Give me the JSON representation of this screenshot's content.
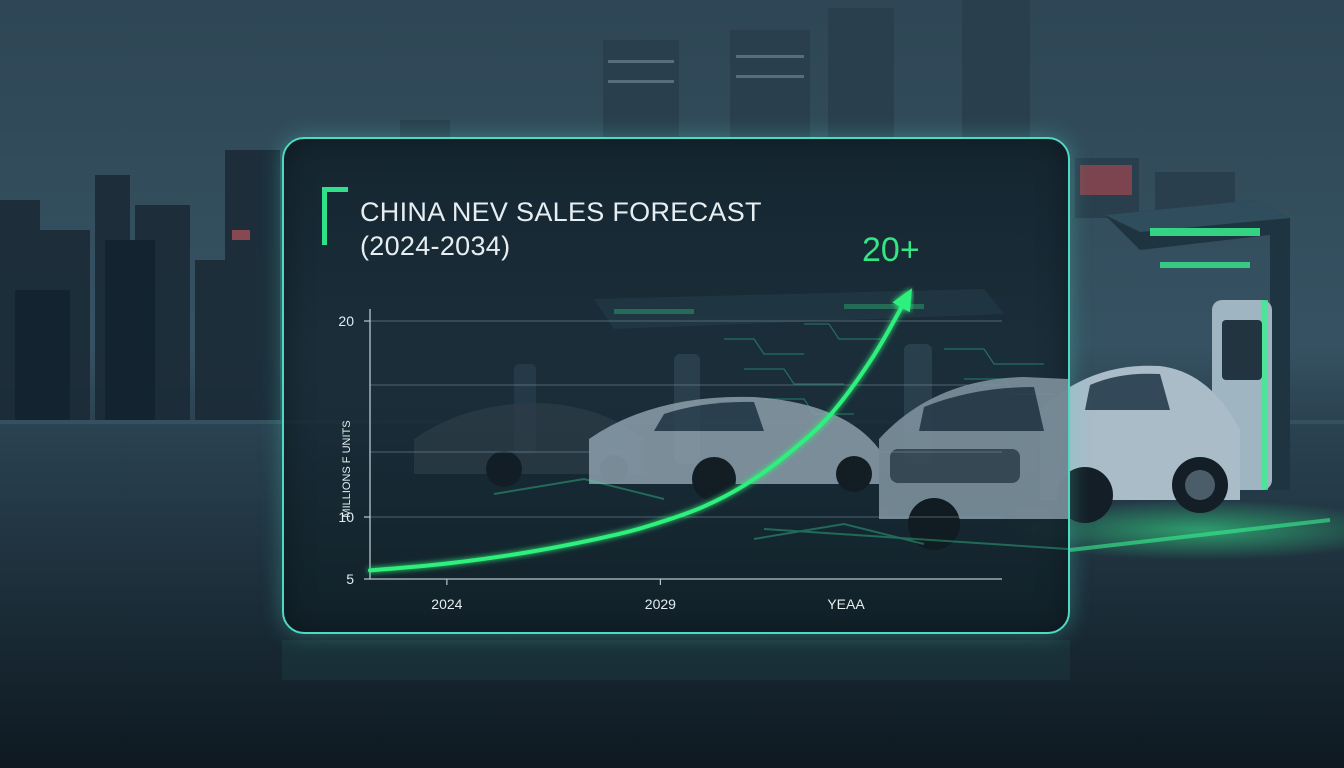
{
  "chart_data": {
    "type": "line",
    "title_lines": [
      "CHINA NEV SALES FORECAST",
      "(2024-2034)"
    ],
    "xlabel": "YEAA",
    "ylabel": "MILLIONS F UNITS",
    "x_ticks": [
      "2024",
      "2029"
    ],
    "y_ticks": [
      20,
      10,
      5
    ],
    "ylim": [
      5,
      20
    ],
    "xlim": [
      2022.2,
      2037
    ],
    "grid": true,
    "annotation": "20+",
    "series": [
      {
        "x": [
          2022.2,
          2024,
          2026,
          2028,
          2029,
          2030,
          2031,
          2032,
          2033,
          2034,
          2034.8
        ],
        "y": [
          5.5,
          5.9,
          6.6,
          7.6,
          8.3,
          9.2,
          10.5,
          12.3,
          14.6,
          18.0,
          21.5
        ]
      }
    ],
    "colors": {
      "line": "#2ff07c",
      "grid": "#7d93a0",
      "accent": "#4fd9c3"
    }
  }
}
